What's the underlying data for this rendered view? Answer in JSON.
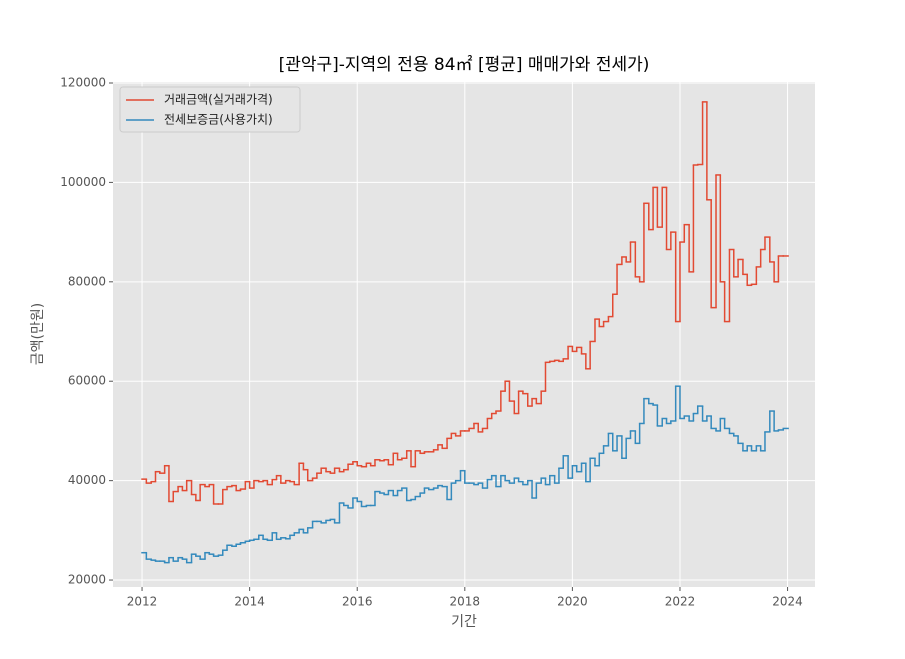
{
  "chart_data": {
    "type": "step",
    "title": "[관악구]-지역의 전용 84㎡ [평균] 매매가와 전세가)",
    "x_label": "기간",
    "y_label": "금액(만원)",
    "xlim": [
      2011.46,
      2024.51
    ],
    "xticks": [
      2012,
      2014,
      2016,
      2018,
      2020,
      2022,
      2024
    ],
    "ylim": [
      18600,
      120200
    ],
    "yticks": [
      20000,
      40000,
      60000,
      80000,
      100000,
      120000
    ],
    "grid": true,
    "legend": "upper left",
    "x": [
      2012,
      2012.08,
      2012.17,
      2012.25,
      2012.33,
      2012.42,
      2012.5,
      2012.58,
      2012.67,
      2012.75,
      2012.83,
      2012.92,
      2013,
      2013.08,
      2013.17,
      2013.25,
      2013.33,
      2013.42,
      2013.5,
      2013.58,
      2013.67,
      2013.75,
      2013.83,
      2013.92,
      2014,
      2014.08,
      2014.17,
      2014.25,
      2014.33,
      2014.42,
      2014.5,
      2014.58,
      2014.67,
      2014.75,
      2014.83,
      2014.92,
      2015,
      2015.08,
      2015.17,
      2015.25,
      2015.33,
      2015.42,
      2015.5,
      2015.58,
      2015.67,
      2015.75,
      2015.83,
      2015.92,
      2016,
      2016.08,
      2016.17,
      2016.25,
      2016.33,
      2016.42,
      2016.5,
      2016.58,
      2016.67,
      2016.75,
      2016.83,
      2016.92,
      2017,
      2017.08,
      2017.17,
      2017.25,
      2017.33,
      2017.42,
      2017.5,
      2017.58,
      2017.67,
      2017.75,
      2017.83,
      2017.92,
      2018,
      2018.08,
      2018.17,
      2018.25,
      2018.33,
      2018.42,
      2018.5,
      2018.58,
      2018.67,
      2018.75,
      2018.83,
      2018.92,
      2019,
      2019.08,
      2019.17,
      2019.25,
      2019.33,
      2019.42,
      2019.5,
      2019.58,
      2019.67,
      2019.75,
      2019.83,
      2019.92,
      2020,
      2020.08,
      2020.17,
      2020.25,
      2020.33,
      2020.42,
      2020.5,
      2020.58,
      2020.67,
      2020.75,
      2020.83,
      2020.92,
      2021,
      2021.08,
      2021.17,
      2021.25,
      2021.33,
      2021.42,
      2021.5,
      2021.58,
      2021.67,
      2021.75,
      2021.83,
      2021.92,
      2022,
      2022.08,
      2022.17,
      2022.25,
      2022.33,
      2022.42,
      2022.5,
      2022.58,
      2022.67,
      2022.75,
      2022.83,
      2022.92,
      2023,
      2023.08,
      2023.17,
      2023.25,
      2023.33,
      2023.42,
      2023.5,
      2023.58,
      2023.67,
      2023.75,
      2023.83,
      2023.92
    ],
    "series": [
      {
        "name": "거래금액(실거래가격)",
        "color": "#e24a33",
        "values": [
          40300,
          39500,
          39800,
          41800,
          41500,
          43000,
          35800,
          37800,
          38800,
          38000,
          40000,
          37200,
          36000,
          39200,
          38800,
          39200,
          35300,
          35300,
          38200,
          38800,
          39000,
          38000,
          38300,
          39800,
          38500,
          40000,
          39800,
          40000,
          39200,
          40200,
          41000,
          39500,
          40000,
          39800,
          39200,
          43500,
          42200,
          40000,
          40500,
          41500,
          42500,
          41800,
          41500,
          42500,
          41800,
          42200,
          43300,
          43800,
          43000,
          42800,
          43500,
          43000,
          44200,
          44000,
          44200,
          43200,
          45500,
          44200,
          44500,
          46000,
          42800,
          46000,
          45500,
          45800,
          45800,
          46200,
          47200,
          46500,
          48500,
          49500,
          49000,
          50000,
          50000,
          50500,
          51500,
          49800,
          50500,
          52500,
          53500,
          54000,
          58000,
          60000,
          56000,
          53500,
          58000,
          57500,
          55000,
          56500,
          55500,
          58000,
          63800,
          64000,
          64200,
          64000,
          64500,
          67000,
          66000,
          66800,
          65500,
          62500,
          68000,
          72500,
          71000,
          72000,
          73000,
          77500,
          83500,
          85000,
          84000,
          88000,
          81000,
          80000,
          95800,
          90500,
          99000,
          91000,
          99000,
          86500,
          90000,
          72000,
          88000,
          91500,
          82000,
          103500,
          103600,
          116200,
          96500,
          74800,
          101500,
          80000,
          72000,
          86500,
          81000,
          84500,
          81500,
          79300,
          79500,
          83000,
          86500,
          89000,
          84000,
          80000,
          85200,
          85200
        ]
      },
      {
        "name": "전세보증금(사용가치)",
        "color": "#348abd",
        "values": [
          25500,
          24200,
          24000,
          23800,
          23800,
          23500,
          24500,
          23800,
          24500,
          24200,
          23500,
          25200,
          24800,
          24200,
          25500,
          25200,
          24800,
          25000,
          26000,
          27000,
          26800,
          27200,
          27500,
          27800,
          28000,
          28200,
          29000,
          28200,
          28000,
          29500,
          28200,
          28500,
          28300,
          29000,
          29500,
          30200,
          29500,
          30500,
          31800,
          31800,
          31500,
          32000,
          32200,
          31500,
          35500,
          35000,
          34500,
          36500,
          35800,
          34800,
          35000,
          35000,
          37800,
          37500,
          37200,
          38000,
          37000,
          38000,
          38500,
          36000,
          36200,
          36800,
          37500,
          38500,
          38200,
          38500,
          39000,
          38800,
          36200,
          39500,
          40000,
          42000,
          39500,
          39500,
          39200,
          39500,
          38500,
          40200,
          41000,
          38800,
          41000,
          40000,
          39500,
          40500,
          39800,
          39200,
          40000,
          36500,
          39500,
          40500,
          39200,
          41000,
          39500,
          42500,
          45000,
          40500,
          43000,
          41800,
          43500,
          39800,
          44500,
          43000,
          45500,
          47000,
          49500,
          46000,
          49000,
          44500,
          48500,
          50000,
          47500,
          51500,
          56500,
          55500,
          55200,
          51000,
          52500,
          51500,
          52000,
          59000,
          52500,
          53000,
          52000,
          53500,
          55000,
          52000,
          53000,
          50500,
          50000,
          52500,
          50500,
          49500,
          49000,
          47500,
          46000,
          47000,
          46000,
          47000,
          46000,
          49800,
          54000,
          50000,
          50200,
          50500
        ]
      }
    ]
  }
}
